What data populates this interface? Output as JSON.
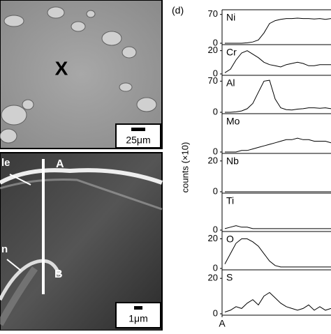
{
  "images": {
    "top": {
      "marker": "X",
      "scale": "25μm"
    },
    "bottom": {
      "label_left_top": "le",
      "point_a": "A",
      "label_left_bottom": "n",
      "point_b": "B",
      "scale": "1μm"
    }
  },
  "plot_labels": {
    "panel": "(d)",
    "ylabel": "counts (×10)",
    "xlabel": "A"
  },
  "chart_data": [
    {
      "type": "line",
      "title": "Ni",
      "values": [
        0,
        0,
        0,
        0,
        1,
        3,
        8,
        25,
        48,
        55,
        58,
        60,
        60,
        61,
        60,
        60,
        59,
        60,
        58,
        60
      ],
      "ylim": [
        0,
        78
      ],
      "yticks": [
        0,
        70
      ],
      "color": "#000000"
    },
    {
      "type": "line",
      "title": "Cr",
      "values": [
        1,
        4,
        12,
        18,
        20,
        17,
        14,
        10,
        8,
        7,
        6,
        8,
        9,
        10,
        9,
        7,
        7,
        8,
        8,
        8
      ],
      "ylim": [
        0,
        24
      ],
      "yticks": [
        0,
        20
      ],
      "color": "#000000"
    },
    {
      "type": "line",
      "title": "Al",
      "values": [
        0,
        0,
        1,
        3,
        8,
        20,
        45,
        70,
        72,
        30,
        10,
        6,
        5,
        7,
        8,
        10,
        10,
        9,
        10,
        8
      ],
      "ylim": [
        0,
        80
      ],
      "yticks": [
        0,
        70
      ],
      "color": "#000000"
    },
    {
      "type": "line",
      "title": "Mo",
      "values": [
        0,
        0,
        0,
        1,
        1,
        2,
        3,
        4,
        5,
        6,
        7,
        8,
        8,
        9,
        8,
        8,
        7,
        7,
        7,
        6
      ],
      "ylim": [
        0,
        24
      ],
      "yticks": [
        0
      ],
      "color": "#000000"
    },
    {
      "type": "line",
      "title": "Nb",
      "values": [
        0,
        0,
        0,
        0,
        0,
        0,
        0,
        0,
        0,
        0,
        0,
        0,
        0,
        0,
        0,
        0,
        0,
        0,
        0,
        0
      ],
      "ylim": [
        0,
        24
      ],
      "yticks": [
        0,
        20
      ],
      "color": "#000000"
    },
    {
      "type": "line",
      "title": "Ti",
      "values": [
        1,
        2,
        3,
        2,
        2,
        1,
        1,
        1,
        1,
        1,
        1,
        1,
        1,
        1,
        1,
        1,
        1,
        1,
        1,
        1
      ],
      "ylim": [
        0,
        24
      ],
      "yticks": [
        0
      ],
      "color": "#000000"
    },
    {
      "type": "line",
      "title": "O",
      "values": [
        3,
        10,
        17,
        20,
        20,
        18,
        15,
        10,
        5,
        2,
        1,
        1,
        1,
        1,
        1,
        1,
        1,
        1,
        1,
        1
      ],
      "ylim": [
        0,
        24
      ],
      "yticks": [
        0,
        20
      ],
      "color": "#000000"
    },
    {
      "type": "line",
      "title": "S",
      "values": [
        1,
        2,
        4,
        3,
        6,
        8,
        5,
        10,
        12,
        9,
        6,
        4,
        3,
        2,
        3,
        5,
        2,
        4,
        2,
        3
      ],
      "ylim": [
        0,
        24
      ],
      "yticks": [
        0,
        20
      ],
      "color": "#000000"
    }
  ]
}
